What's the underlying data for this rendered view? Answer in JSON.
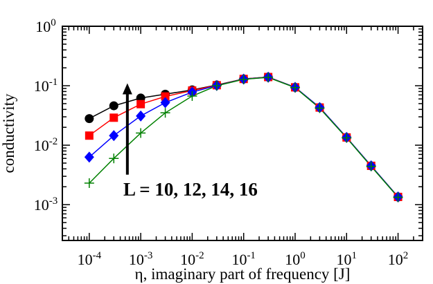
{
  "chart_data": {
    "type": "line",
    "xscale": "log",
    "yscale": "log",
    "xlim": [
      3e-05,
      300
    ],
    "ylim": [
      0.00025,
      1
    ],
    "xlabel": "η, imaginary part of frequency [J]",
    "ylabel": "conductivity",
    "grid": false,
    "legend": "none",
    "x_tick_values": [
      0.0001,
      0.001,
      0.01,
      0.1,
      1,
      10,
      100
    ],
    "x_tick_labels": [
      {
        "base": "10",
        "exp": "-4"
      },
      {
        "base": "10",
        "exp": "-3"
      },
      {
        "base": "10",
        "exp": "-2"
      },
      {
        "base": "10",
        "exp": "-1"
      },
      {
        "base": "10",
        "exp": "0"
      },
      {
        "base": "10",
        "exp": "1"
      },
      {
        "base": "10",
        "exp": "2"
      }
    ],
    "y_tick_values": [
      0.001,
      0.01,
      0.1,
      1
    ],
    "y_tick_labels": [
      {
        "base": "10",
        "exp": "-3"
      },
      {
        "base": "10",
        "exp": "-2"
      },
      {
        "base": "10",
        "exp": "-1"
      },
      {
        "base": "10",
        "exp": "0"
      }
    ],
    "annotation": {
      "text": "L = 10, 12, 14, 16",
      "arrow_x": 0.00055,
      "arrow_from_y": 0.0032,
      "arrow_to_y": 0.11
    },
    "x": [
      0.0001,
      0.0003,
      0.001,
      0.003,
      0.01,
      0.03,
      0.1,
      0.3,
      1,
      3,
      10,
      30,
      100
    ],
    "series": [
      {
        "marker": "circle",
        "color": "#000000",
        "values": [
          0.028,
          0.046,
          0.062,
          0.072,
          0.085,
          0.103,
          0.13,
          0.14,
          0.094,
          0.043,
          0.0135,
          0.0045,
          0.00135
        ]
      },
      {
        "marker": "square",
        "color": "#ff0000",
        "values": [
          0.0145,
          0.029,
          0.049,
          0.066,
          0.083,
          0.102,
          0.13,
          0.14,
          0.094,
          0.043,
          0.0135,
          0.0045,
          0.00135
        ]
      },
      {
        "marker": "diamond",
        "color": "#0000ff",
        "values": [
          0.0063,
          0.0145,
          0.031,
          0.052,
          0.078,
          0.101,
          0.129,
          0.139,
          0.094,
          0.043,
          0.0135,
          0.0045,
          0.00135
        ]
      },
      {
        "marker": "plus",
        "color": "#008000",
        "values": [
          0.0023,
          0.006,
          0.016,
          0.035,
          0.067,
          0.1,
          0.128,
          0.138,
          0.093,
          0.042,
          0.0133,
          0.0044,
          0.00133
        ]
      }
    ]
  }
}
